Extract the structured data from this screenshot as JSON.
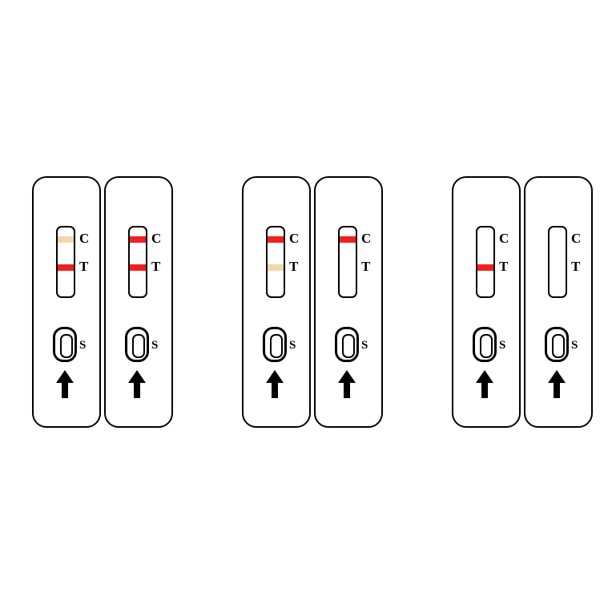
{
  "diagram": {
    "type": "infographic",
    "description": "Rapid test cassette result interpretation",
    "background_color": "#ffffff",
    "cassette_border_color": "#000000",
    "cassette_border_width": 2,
    "cassette_border_radius": 18,
    "label_font": "Times New Roman",
    "label_fontsize": 17,
    "label_color": "#000000",
    "labels": {
      "control": "C",
      "test": "T",
      "sample": "S"
    },
    "colors": {
      "strong_red": "#ef2020",
      "faint_tan": "#f3d6a9"
    },
    "groups": [
      {
        "name": "group-1",
        "cassettes": [
          {
            "id": "c1",
            "c_line": "#f3d6a9",
            "t_line": "#ef2020"
          },
          {
            "id": "c2",
            "c_line": "#ef2020",
            "t_line": "#ef2020"
          }
        ]
      },
      {
        "name": "group-2",
        "cassettes": [
          {
            "id": "c3",
            "c_line": "#ef2020",
            "t_line": "#f3d6a9"
          },
          {
            "id": "c4",
            "c_line": "#ef2020",
            "t_line": null
          }
        ]
      },
      {
        "name": "group-3",
        "cassettes": [
          {
            "id": "c5",
            "c_line": null,
            "t_line": "#ef2020"
          },
          {
            "id": "c6",
            "c_line": null,
            "t_line": null
          }
        ]
      }
    ]
  }
}
